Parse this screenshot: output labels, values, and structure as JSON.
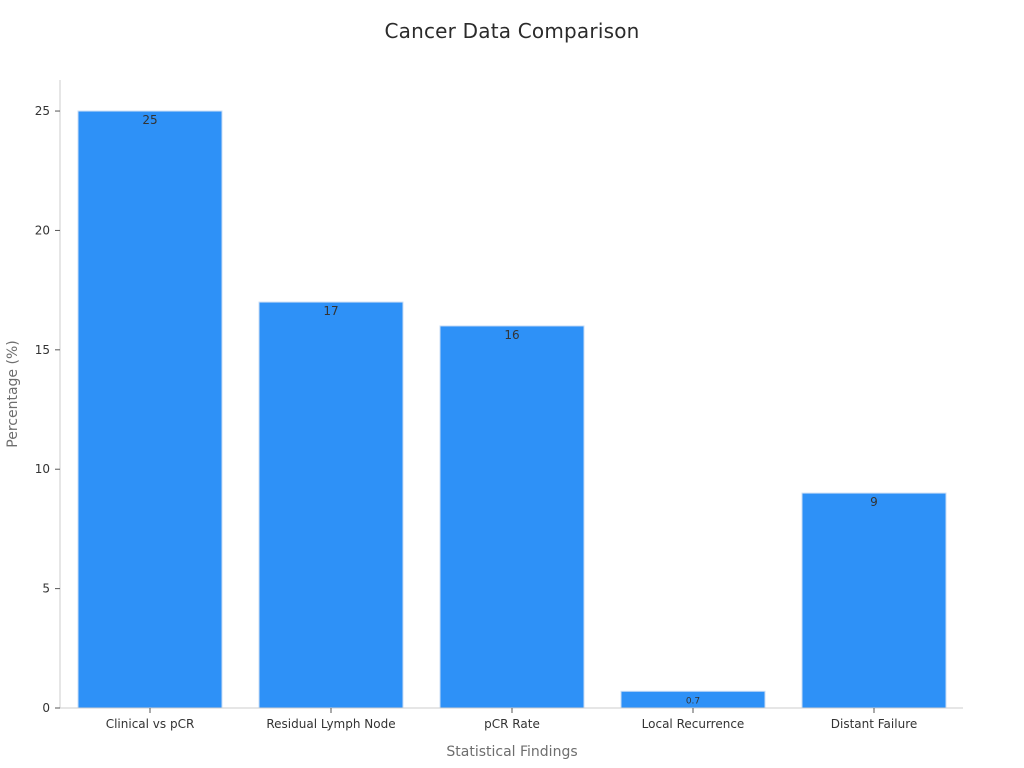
{
  "chart_data": {
    "type": "bar",
    "title": "Cancer Data Comparison",
    "xlabel": "Statistical Findings",
    "ylabel": "Percentage (%)",
    "categories": [
      "Clinical vs pCR",
      "Residual Lymph Node",
      "pCR Rate",
      "Local Recurrence",
      "Distant Failure"
    ],
    "values": [
      25,
      17,
      16,
      0.7,
      9
    ],
    "data_labels": [
      "25",
      "17",
      "16",
      "0.7",
      "9"
    ],
    "ylim": [
      0,
      26.3
    ],
    "yticks": [
      0,
      5,
      10,
      15,
      20,
      25
    ],
    "grid": false,
    "legend": "none",
    "bar_color": "#2e91f7",
    "bar_edge_color": "#c9ddf5"
  }
}
